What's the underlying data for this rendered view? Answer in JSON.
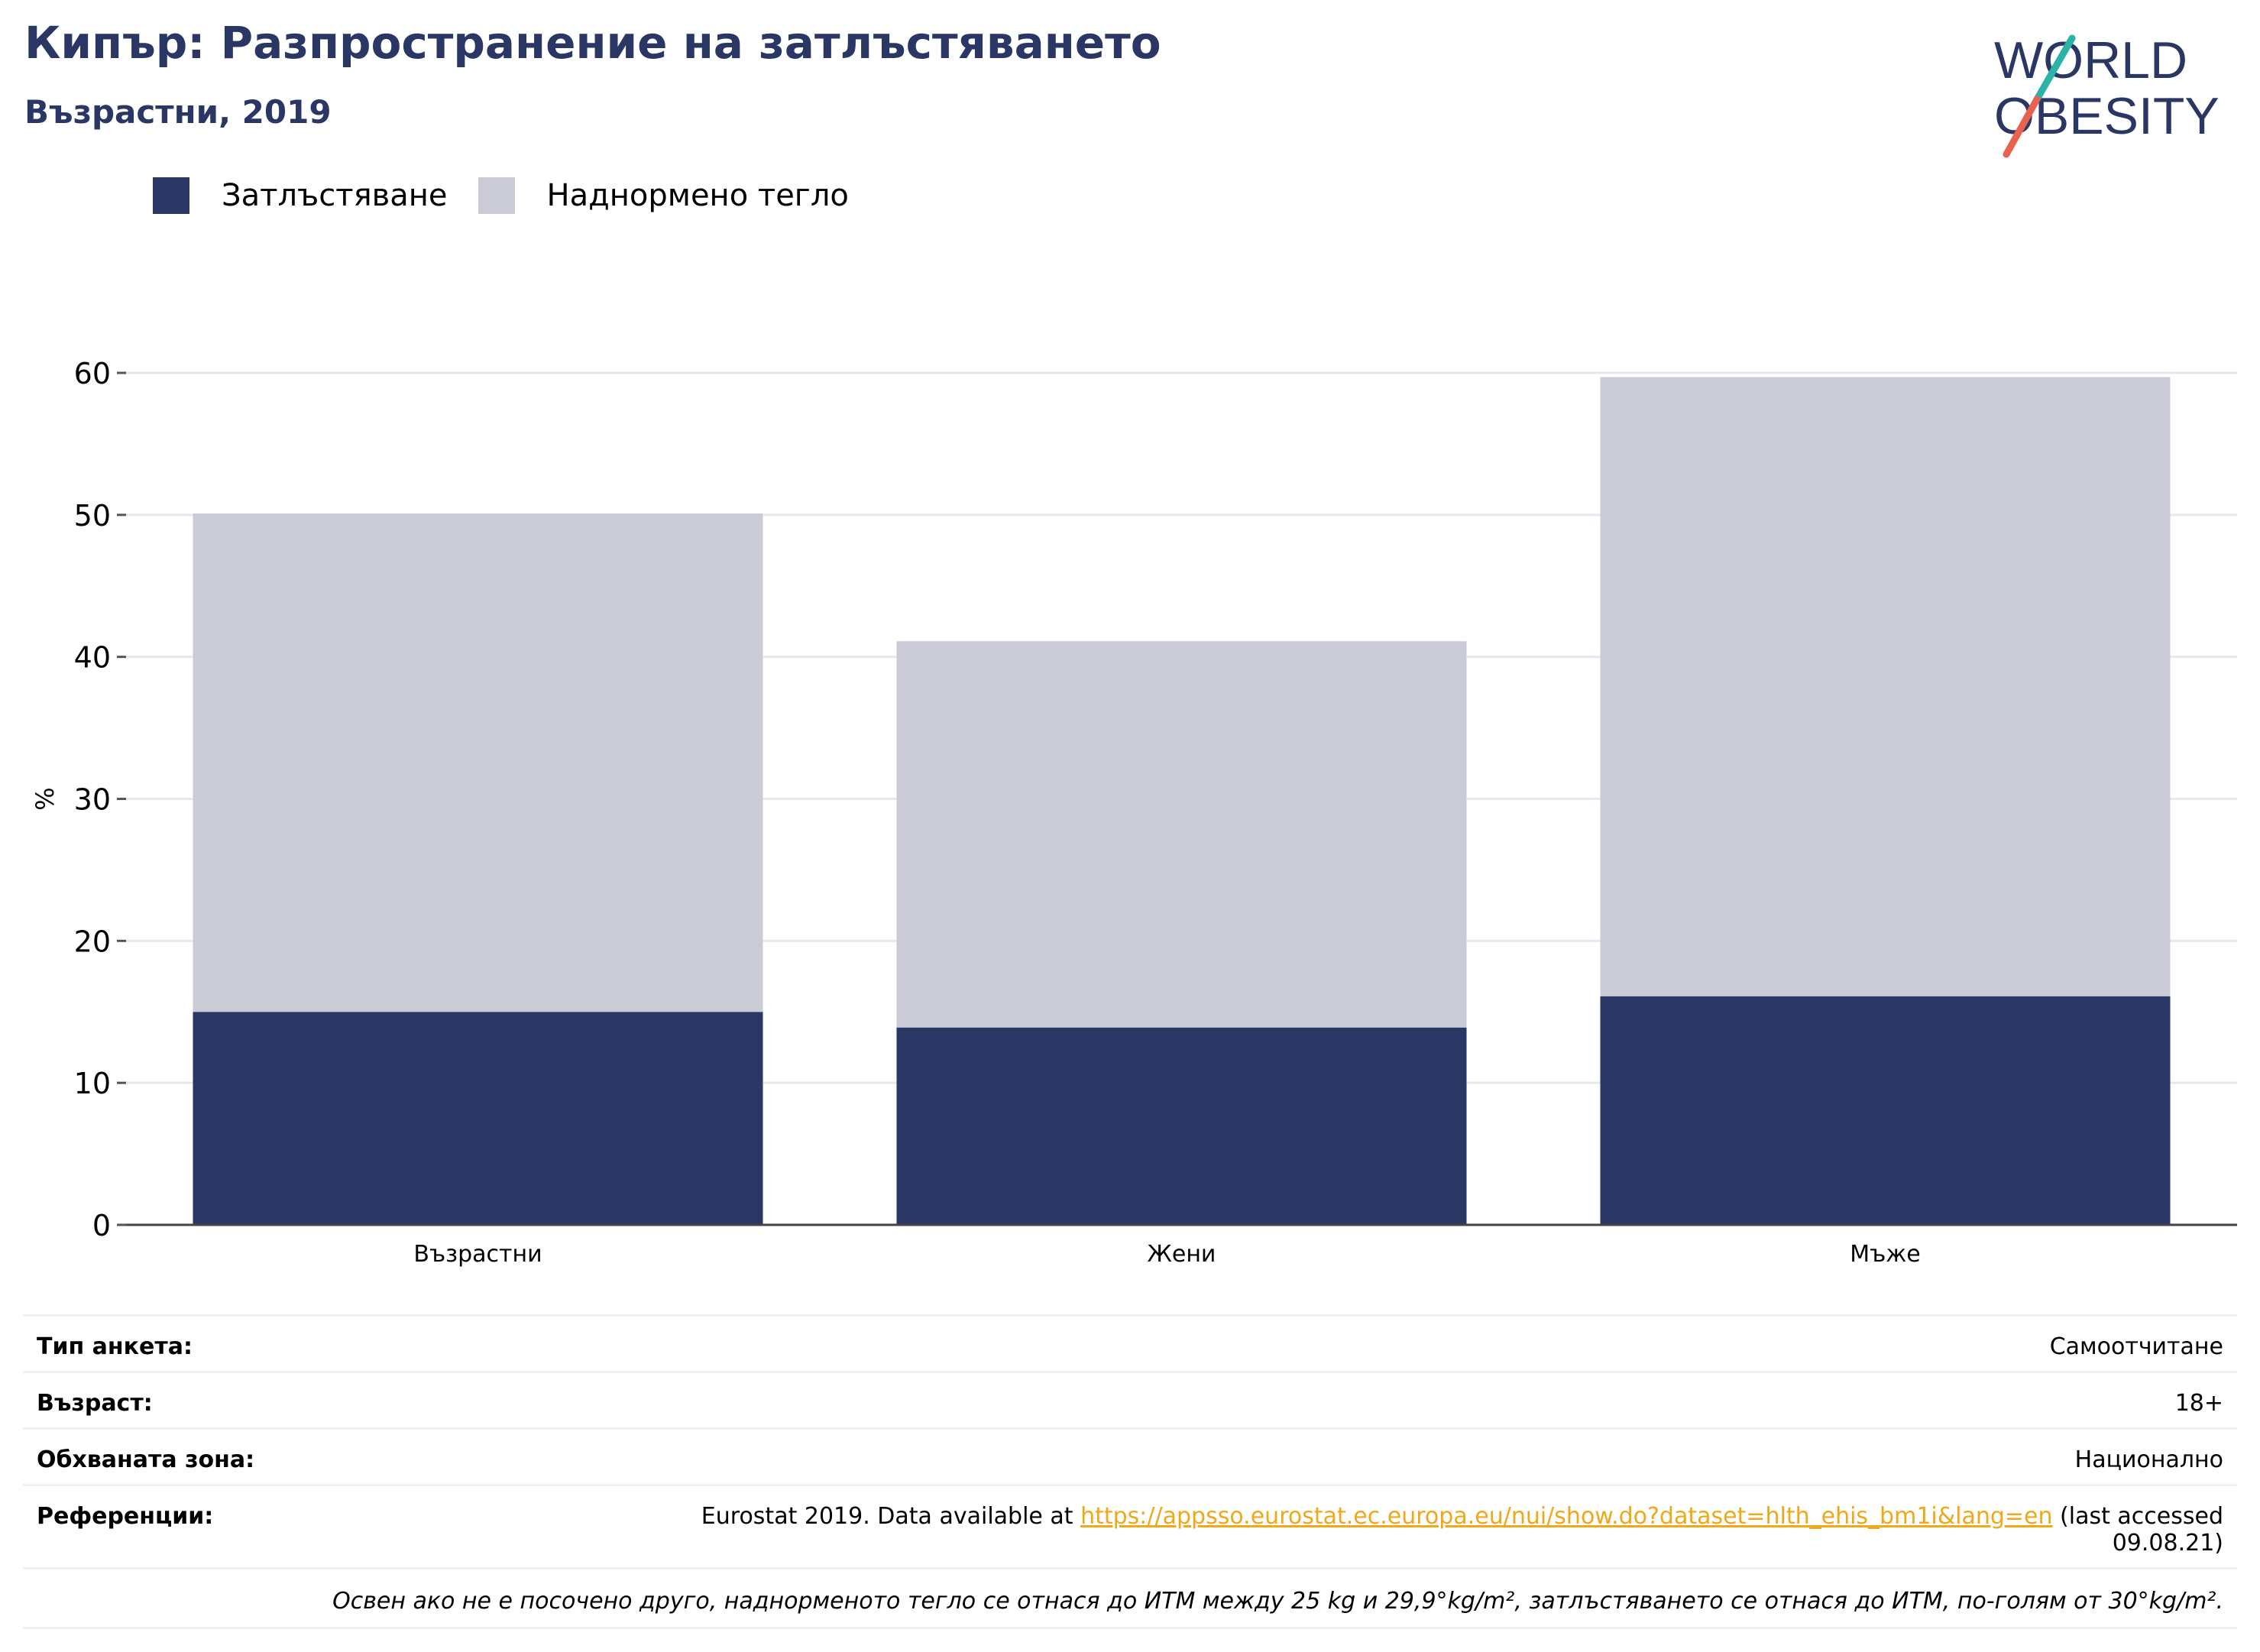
{
  "header": {
    "title": "Кипър: Разпространение на затлъстяването",
    "subtitle": "Възрастни, 2019"
  },
  "logo": {
    "line1": "WORLD",
    "line2": "OBESITY",
    "colors": {
      "text": "#2a3764",
      "slash_teal": "#2bb3a8",
      "slash_coral": "#e8634f"
    }
  },
  "legend": [
    {
      "label": "Затлъстяване",
      "color": "#2a3764"
    },
    {
      "label": "Наднормено тегло",
      "color": "#cacbd7"
    }
  ],
  "chart_data": {
    "type": "bar",
    "stacked": true,
    "categories": [
      "Възрастни",
      "Жени",
      "Мъже"
    ],
    "series": [
      {
        "name": "Затлъстяване",
        "values": [
          15.0,
          13.9,
          16.1
        ],
        "color": "#2a3764"
      },
      {
        "name": "Наднормено тегло",
        "values": [
          35.1,
          27.2,
          43.6
        ],
        "color": "#cacbd7"
      }
    ],
    "totals": [
      50.1,
      41.1,
      59.7
    ],
    "ylabel": "%",
    "ylim": [
      0,
      60
    ],
    "yticks": [
      0,
      10,
      20,
      30,
      40,
      50,
      60
    ],
    "grid": true,
    "legend_position": "top-left"
  },
  "info": {
    "survey_type": {
      "key": "Тип анкета:",
      "value": "Самоотчитане"
    },
    "age": {
      "key": "Възраст:",
      "value": "18+"
    },
    "area": {
      "key": "Обхваната зона:",
      "value": "Национално"
    },
    "references": {
      "key": "Референции:",
      "prefix": "Eurostat 2019. Data available at ",
      "link": "https://appsso.eurostat.ec.europa.eu/nui/show.do?dataset=hlth_ehis_bm1i&lang=en",
      "suffix": " (last accessed",
      "suffix2": "09.08.21)"
    },
    "note": "Освен ако не е посочено друго, наднорменото тегло се отнася до ИТМ между 25 kg и 29,9°kg/m², затлъстяването се отнася до ИТМ, по-голям от 30°kg/m²."
  }
}
